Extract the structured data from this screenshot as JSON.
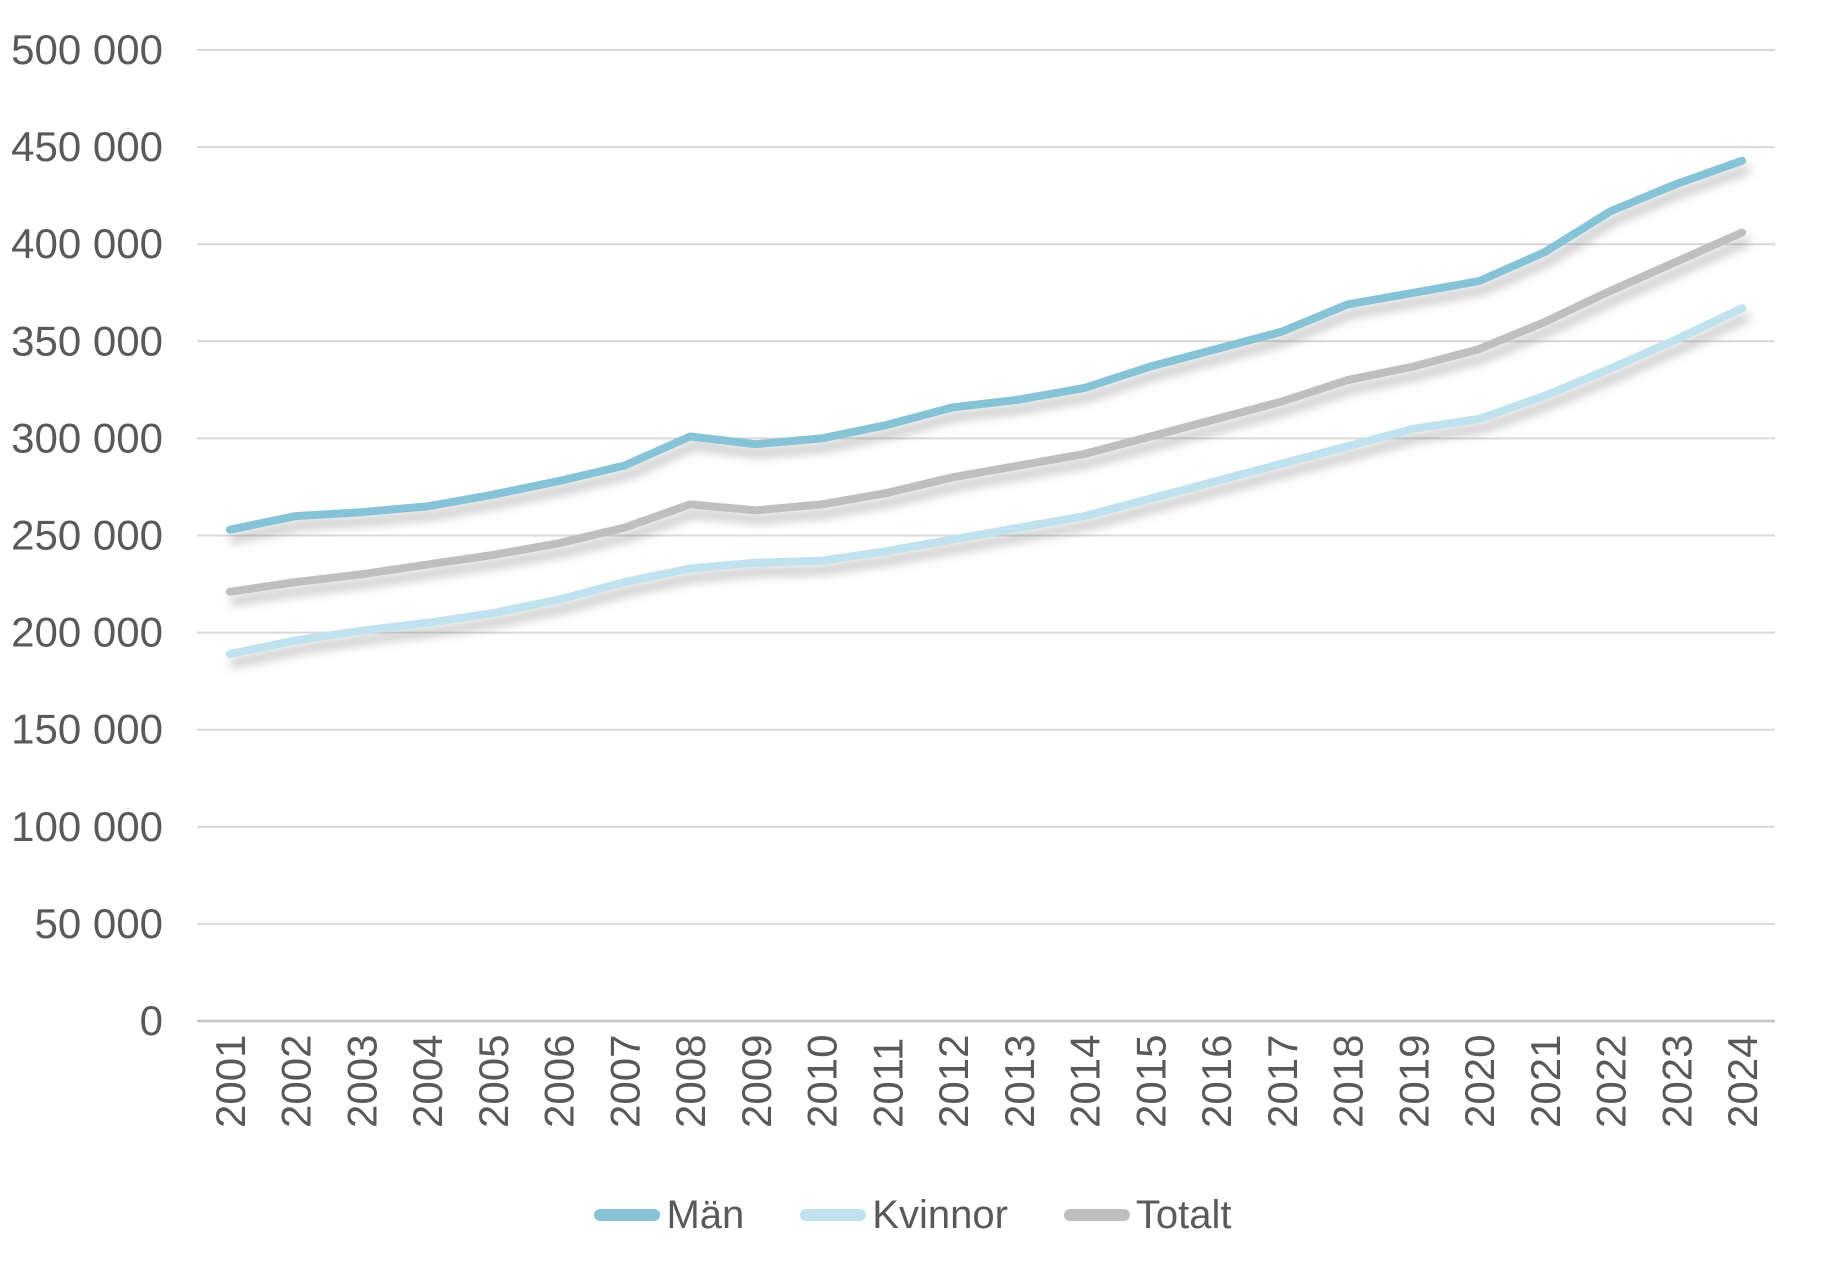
{
  "chart_data": {
    "type": "line",
    "title": "",
    "xlabel": "",
    "ylabel": "",
    "grid": true,
    "legend_position": "bottom",
    "categories": [
      "2001",
      "2002",
      "2003",
      "2004",
      "2005",
      "2006",
      "2007",
      "2008",
      "2009",
      "2010",
      "2011",
      "2012",
      "2013",
      "2014",
      "2015",
      "2016",
      "2017",
      "2018",
      "2019",
      "2020",
      "2021",
      "2022",
      "2023",
      "2024"
    ],
    "ylim": [
      0,
      500000
    ],
    "ytick_step": 50000,
    "ytick_labels": [
      "0",
      "50 000",
      "100 000",
      "150 000",
      "200 000",
      "250 000",
      "300 000",
      "350 000",
      "400 000",
      "450 000",
      "500 000"
    ],
    "series": [
      {
        "name": "Män",
        "color": "#86C3D7",
        "values": [
          253000,
          260000,
          262000,
          265000,
          271000,
          278000,
          286000,
          301000,
          297000,
          300000,
          307000,
          316000,
          320000,
          326000,
          337000,
          346000,
          355000,
          369000,
          375000,
          381000,
          396000,
          417000,
          431000,
          443000
        ]
      },
      {
        "name": "Kvinnor",
        "color": "#BFE2EE",
        "values": [
          189000,
          196000,
          201000,
          205000,
          210000,
          217000,
          226000,
          233000,
          236000,
          237000,
          242000,
          248000,
          254000,
          260000,
          269000,
          278000,
          287000,
          296000,
          305000,
          310000,
          322000,
          336000,
          351000,
          367000
        ]
      },
      {
        "name": "Totalt",
        "color": "#BFBFBF",
        "values": [
          221000,
          226000,
          230000,
          235000,
          240000,
          246000,
          254000,
          266000,
          263000,
          266000,
          272000,
          280000,
          286000,
          292000,
          301000,
          310000,
          319000,
          330000,
          337000,
          346000,
          360000,
          376000,
          391000,
          406000
        ]
      }
    ]
  },
  "colors": {
    "tick_text": "#595959",
    "gridline": "#D9D9D9",
    "axis_line": "#C3C3C3",
    "background": "#FFFFFF"
  }
}
